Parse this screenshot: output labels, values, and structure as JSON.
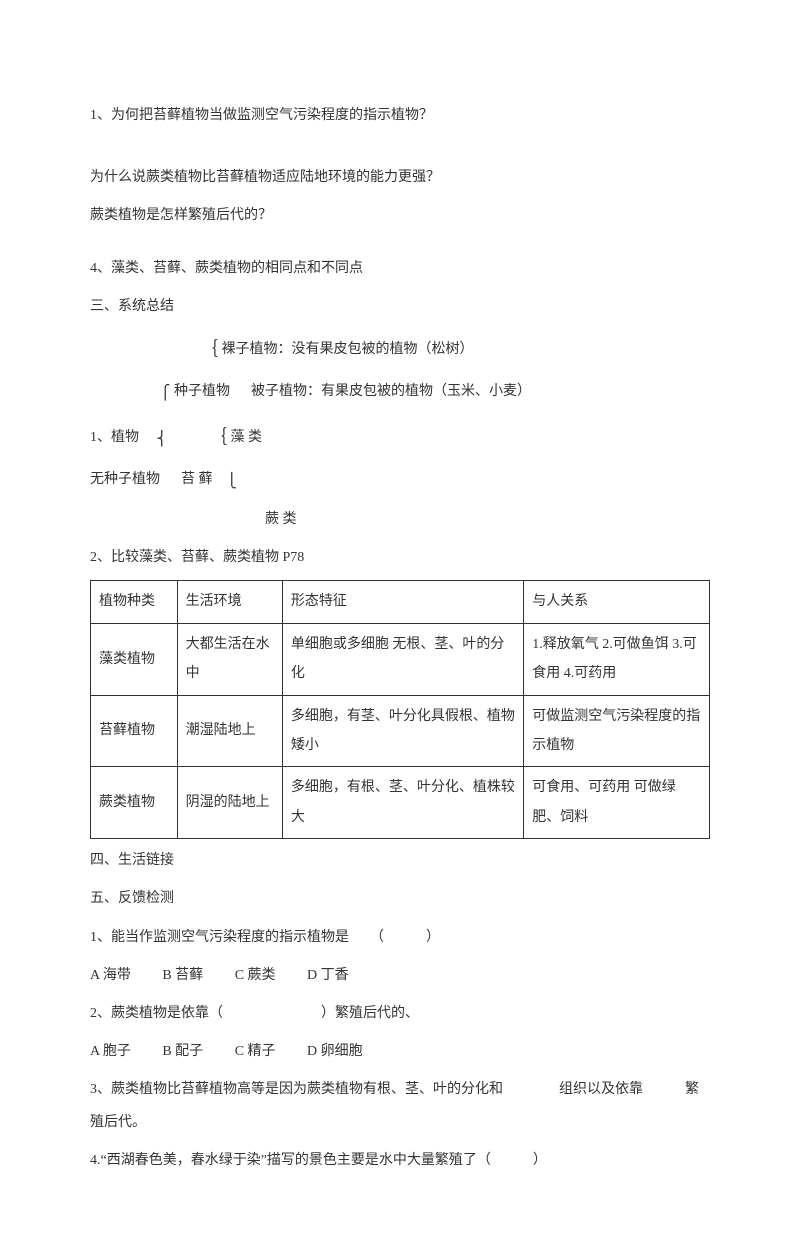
{
  "lines": {
    "q1": "1、为何把苔藓植物当做监测空气污染程度的指示植物？",
    "q2a": "为什么说蕨类植物比苔藓植物适应陆地环境的能力更强？",
    "q2b": "蕨类植物是怎样繁殖后代的？",
    "q4": "4、藻类、苔藓、蕨类植物的相同点和不同点",
    "sec3": "三、系统总结",
    "tree1": "裸子植物：没有果皮包被的植物（松树）",
    "tree2_left": "种子植物",
    "tree2": "被子植物：有果皮包被的植物（玉米、小麦）",
    "tree3_left": "1、植物",
    "tree3_right": "藻 类",
    "tree4_left": "无种子植物",
    "tree4_mid": "苔 藓",
    "tree5": "蕨 类",
    "cmp_title": "2、比较藻类、苔藓、蕨类植物 P78"
  },
  "table": {
    "headers": [
      "植物种类",
      "生活环境",
      "形态特征",
      "与人关系"
    ],
    "rows": [
      [
        "藻类植物",
        "大都生活在水中",
        "单细胞或多细胞\n无根、茎、叶的分化",
        "1.释放氧气 2.可做鱼饵 3.可食用 4.可药用"
      ],
      [
        "苔藓植物",
        "潮湿陆地上",
        "多细胞，有茎、叶分化具假根、植物矮小",
        "可做监测空气污染程度的指示植物"
      ],
      [
        "蕨类植物",
        "阴湿的陆地上",
        "多细胞，有根、茎、叶分化、植株较大",
        "可食用、可药用\n可做绿肥、饲料"
      ]
    ]
  },
  "after": {
    "sec4": "四、生活链接",
    "sec5": "五、反馈检测",
    "t1": "1、能当作监测空气污染程度的指示植物是　　（　　　）",
    "t1a": "A 海带",
    "t1b": "B 苔藓",
    "t1c": "C 蕨类",
    "t1d": "D 丁香",
    "t2": "2、蕨类植物是依靠（　　　　　　　）繁殖后代的、",
    "t2a": "A 胞子",
    "t2b": "B 配子",
    "t2c": "C 精子",
    "t2d": "D 卵细胞",
    "t3": "3、蕨类植物比苔藓植物高等是因为蕨类植物有根、茎、叶的分化和　　　　组织以及依靠　　　繁殖后代。",
    "t4": "4.“西湖春色美，春水绿于染”描写的景色主要是水中大量繁殖了（　　　）"
  }
}
